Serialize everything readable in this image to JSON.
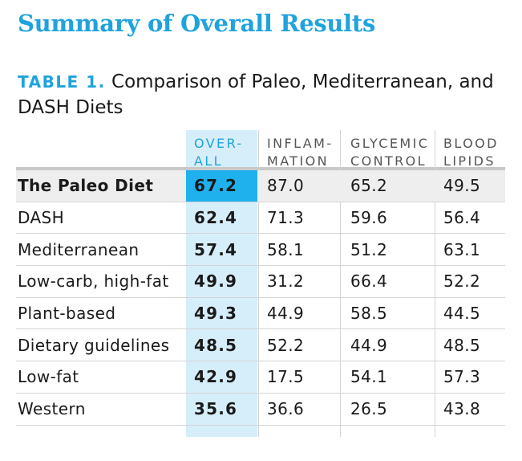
{
  "heading": "Summary of Overall Results",
  "caption": {
    "tag": "TABLE 1.",
    "text": "Comparison of Paleo, Mediterranean, and DASH Diets"
  },
  "columns": [
    "OVER-\nALL",
    "INFLAM-\nMATION",
    "GLYCEMIC\nCONTROL",
    "BLOOD\nLIPIDS"
  ],
  "rows": [
    {
      "name": "The Paleo Diet",
      "overall": "67.2",
      "inflammation": "87.0",
      "glycemic": "65.2",
      "lipids": "49.5"
    },
    {
      "name": "DASH",
      "overall": "62.4",
      "inflammation": "71.3",
      "glycemic": "59.6",
      "lipids": "56.4"
    },
    {
      "name": "Mediterranean",
      "overall": "57.4",
      "inflammation": "58.1",
      "glycemic": "51.2",
      "lipids": "63.1"
    },
    {
      "name": "Low-carb, high-fat",
      "overall": "49.9",
      "inflammation": "31.2",
      "glycemic": "66.4",
      "lipids": "52.2"
    },
    {
      "name": "Plant-based",
      "overall": "49.3",
      "inflammation": "44.9",
      "glycemic": "58.5",
      "lipids": "44.5"
    },
    {
      "name": "Dietary guidelines",
      "overall": "48.5",
      "inflammation": "52.2",
      "glycemic": "44.9",
      "lipids": "48.5"
    },
    {
      "name": "Low-fat",
      "overall": "42.9",
      "inflammation": "17.5",
      "glycemic": "54.1",
      "lipids": "57.3"
    },
    {
      "name": "Western",
      "overall": "35.6",
      "inflammation": "36.6",
      "glycemic": "26.5",
      "lipids": "43.8"
    }
  ],
  "colors": {
    "accent": "#1fa3dd",
    "highlight_cell": "#1fb1ee",
    "overall_column": "#d6eefa",
    "highlight_row": "#eeeeef"
  }
}
